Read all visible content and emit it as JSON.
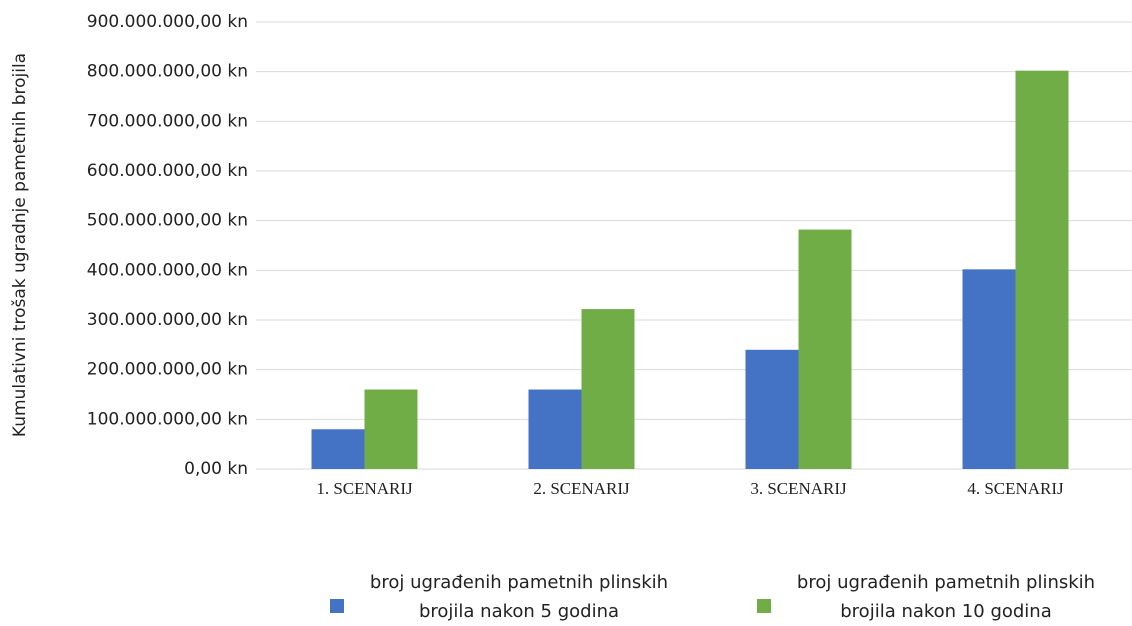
{
  "chart_data": {
    "type": "bar",
    "y_label": "Kumulativni trošak ugradnje pametnih  brojila",
    "categories": [
      "1. SCENARIJ",
      "2. SCENARIJ",
      "3. SCENARIJ",
      "4. SCENARIJ"
    ],
    "series": [
      {
        "name": "broj ugrađenih pametnih plinskih brojila nakon 5 godina",
        "color": "#4472c4",
        "values": [
          80000000,
          160000000,
          240000000,
          402000000
        ]
      },
      {
        "name": "broj ugrađenih pametnih plinskih brojila nakon 10 godina",
        "color": "#70ad47",
        "values": [
          160000000,
          322000000,
          482000000,
          802000000
        ]
      }
    ],
    "ylim": [
      0,
      900000000
    ],
    "yticks": [
      {
        "value": 0,
        "label": "0,00 kn"
      },
      {
        "value": 100000000,
        "label": "100.000.000,00 kn"
      },
      {
        "value": 200000000,
        "label": "200.000.000,00 kn"
      },
      {
        "value": 300000000,
        "label": "300.000.000,00 kn"
      },
      {
        "value": 400000000,
        "label": "400.000.000,00 kn"
      },
      {
        "value": 500000000,
        "label": "500.000.000,00 kn"
      },
      {
        "value": 600000000,
        "label": "600.000.000,00 kn"
      },
      {
        "value": 700000000,
        "label": "700.000.000,00 kn"
      },
      {
        "value": 800000000,
        "label": "800.000.000,00 kn"
      },
      {
        "value": 900000000,
        "label": "900.000.000,00 kn"
      }
    ],
    "grid": true,
    "legend": "bottom"
  }
}
